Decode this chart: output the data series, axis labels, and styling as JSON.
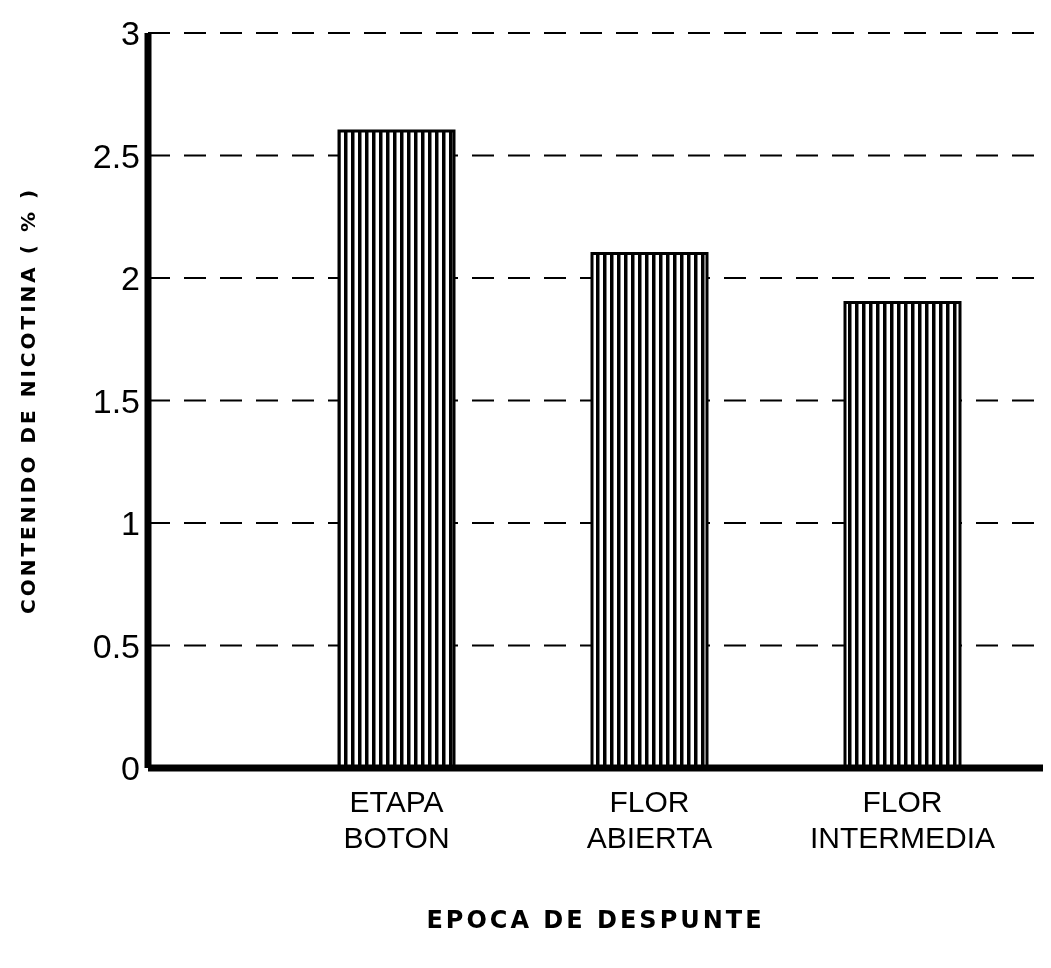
{
  "chart_data": {
    "type": "bar",
    "xlabel": "EPOCA DE DESPUNTE",
    "ylabel": "CONTENIDO DE NICOTINA ( % )",
    "categories": [
      "ETAPA BOTON",
      "FLOR ABIERTA",
      "FLOR INTERMEDIA"
    ],
    "values": [
      2.6,
      2.1,
      1.9
    ],
    "color": "#000000",
    "ylim": [
      0,
      3
    ],
    "yticks": [
      0,
      {
        "value": 0.5,
        "label": "0.5"
      },
      1,
      {
        "value": 1.5,
        "label": "1.5"
      },
      2,
      {
        "value": 2.5,
        "label": "2.5"
      },
      3
    ],
    "grid": "y",
    "line_style": "dashed"
  }
}
